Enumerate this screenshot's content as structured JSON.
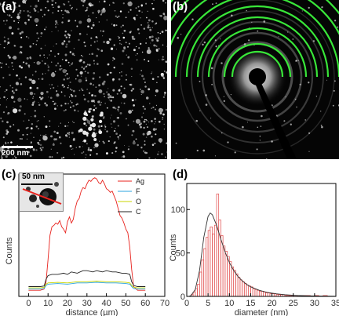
{
  "panels": {
    "a": {
      "label": "(a)",
      "scale_bar": "200 nm"
    },
    "b": {
      "label": "(b)"
    },
    "c": {
      "label": "(c)",
      "inset_scale_bar": "50 nm"
    },
    "d": {
      "label": "(d)"
    }
  },
  "colors": {
    "ring_highlight": "#39e639",
    "line_ag": "#e8231e",
    "line_f": "#2ba4e0",
    "line_o": "#c8d400",
    "line_c": "#222222",
    "histogram_bar": "#e04848",
    "fit_curve": "#333333"
  },
  "chart_data": [
    {
      "type": "line",
      "panel": "c",
      "xlabel": "distance (µm)",
      "ylabel": "Counts",
      "xlim": [
        -5,
        70
      ],
      "xticks": [
        0,
        10,
        20,
        30,
        40,
        50,
        60,
        70
      ],
      "xtick_labels": [
        "0",
        "10",
        "20",
        "30",
        "40",
        "50",
        "60",
        "70"
      ],
      "ylim": [
        0,
        100
      ],
      "legend_position": "top-right",
      "series": [
        {
          "name": "Ag",
          "x": [
            0,
            6,
            8,
            9,
            10,
            11,
            12,
            13,
            14,
            15,
            16,
            17,
            18,
            19,
            20,
            21,
            22,
            23,
            24,
            25,
            26,
            27,
            28,
            29,
            30,
            31,
            32,
            33,
            34,
            35,
            36,
            37,
            38,
            39,
            40,
            41,
            42,
            43,
            44,
            45,
            46,
            47,
            48,
            49,
            50,
            51,
            52,
            53,
            54,
            56,
            60
          ],
          "y": [
            5,
            5,
            6,
            12,
            30,
            50,
            57,
            58,
            60,
            59,
            62,
            57,
            55,
            52,
            61,
            65,
            60,
            63,
            72,
            78,
            80,
            86,
            89,
            88,
            92,
            95,
            94,
            96,
            97,
            96,
            93,
            92,
            95,
            92,
            88,
            87,
            85,
            86,
            82,
            78,
            72,
            66,
            64,
            60,
            55,
            52,
            40,
            22,
            8,
            5,
            5
          ]
        },
        {
          "name": "F",
          "x": [
            0,
            6,
            8,
            9,
            10,
            15,
            20,
            25,
            30,
            35,
            40,
            45,
            50,
            52,
            53,
            54,
            56,
            60
          ],
          "y": [
            6,
            6,
            6.5,
            9,
            10,
            10.5,
            10,
            11,
            11,
            11.5,
            11,
            11,
            10.5,
            10,
            8,
            6.5,
            6,
            6
          ]
        },
        {
          "name": "O",
          "x": [
            0,
            6,
            8,
            9,
            10,
            15,
            20,
            25,
            30,
            35,
            40,
            45,
            50,
            52,
            53,
            54,
            56,
            60
          ],
          "y": [
            7,
            7,
            7.5,
            10,
            11,
            11.5,
            11,
            12,
            12,
            12.5,
            12,
            12,
            11.5,
            11,
            9,
            7.5,
            7,
            7
          ]
        },
        {
          "name": "C",
          "x": [
            0,
            6,
            8,
            9,
            10,
            12,
            15,
            18,
            20,
            22,
            25,
            28,
            30,
            33,
            35,
            38,
            40,
            43,
            45,
            48,
            50,
            52,
            53,
            54,
            56,
            60
          ],
          "y": [
            8,
            8,
            8.5,
            14,
            17,
            18,
            18,
            19,
            18,
            20,
            19,
            21,
            21,
            20,
            21,
            20,
            21,
            20,
            20,
            19,
            19,
            18,
            12,
            9,
            8,
            8
          ]
        }
      ]
    },
    {
      "type": "bar",
      "panel": "d",
      "xlabel": "diameter (nm)",
      "ylabel": "Counts",
      "xlim": [
        0,
        35
      ],
      "xticks": [
        0,
        5,
        10,
        15,
        20,
        25,
        30,
        35
      ],
      "xtick_labels": [
        "0",
        "5",
        "10",
        "15",
        "20",
        "25",
        "30",
        "35"
      ],
      "ylim": [
        0,
        130
      ],
      "yticks": [
        0,
        50,
        100
      ],
      "ytick_labels": [
        "0",
        "50",
        "100"
      ],
      "bin_width": 0.5,
      "bin_starts": [
        1.0,
        1.5,
        2.0,
        2.5,
        3.0,
        3.5,
        4.0,
        4.5,
        5.0,
        5.5,
        6.0,
        6.5,
        7.0,
        7.5,
        8.0,
        8.5,
        9.0,
        9.5,
        10.0,
        10.5,
        11.0,
        11.5,
        12.0,
        12.5,
        13.0,
        13.5,
        14.0,
        14.5,
        15.0,
        15.5,
        16.0,
        16.5,
        17.0,
        17.5,
        18.0,
        18.5,
        19.0,
        19.5,
        20.0,
        20.5,
        21.0,
        21.5,
        22.0,
        22.5,
        23.0,
        23.5,
        24.0,
        24.5,
        25.0,
        26.0,
        27.0,
        28.0,
        29.0,
        30.0,
        31.0,
        32.0,
        33.0
      ],
      "values": [
        2,
        5,
        9,
        14,
        28,
        42,
        55,
        68,
        76,
        80,
        72,
        82,
        118,
        88,
        70,
        58,
        52,
        46,
        40,
        34,
        30,
        26,
        22,
        19,
        17,
        15,
        13,
        12,
        11,
        9,
        8,
        7,
        6,
        6,
        5,
        4,
        4,
        3,
        3,
        3,
        2,
        2,
        2,
        2,
        1,
        1,
        1,
        1,
        1,
        1,
        1,
        1,
        0,
        1,
        0,
        1,
        0
      ],
      "fit_curve": {
        "x": [
          0.5,
          1,
          2,
          3,
          4,
          5,
          5.5,
          6,
          7,
          8,
          9,
          10,
          11,
          12,
          13,
          14,
          15,
          17,
          19,
          21,
          23,
          25,
          28,
          31,
          35
        ],
        "y": [
          0,
          1,
          8,
          30,
          68,
          92,
          96,
          94,
          82,
          66,
          51,
          39,
          30,
          23,
          18,
          14,
          11,
          7,
          4.5,
          3,
          2,
          1.3,
          0.7,
          0.4,
          0.2
        ]
      }
    }
  ]
}
